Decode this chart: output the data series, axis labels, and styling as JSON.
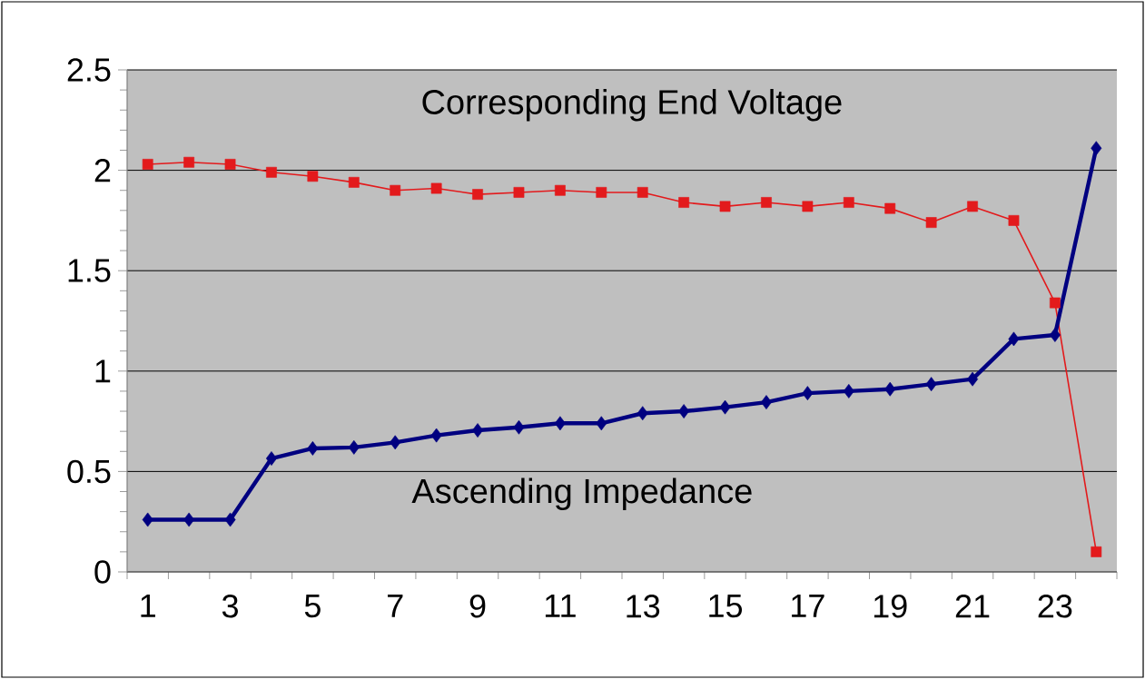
{
  "chart_data": {
    "type": "line",
    "categories": [
      "1",
      null,
      "3",
      null,
      "5",
      null,
      "7",
      null,
      "9",
      null,
      "11",
      null,
      "13",
      null,
      "15",
      null,
      "17",
      null,
      "19",
      null,
      "21",
      null,
      "23",
      null
    ],
    "series": [
      {
        "name": "Corresponding End Voltage",
        "color": "#e31a1c",
        "marker": "square",
        "values": [
          2.03,
          2.04,
          2.03,
          1.99,
          1.97,
          1.94,
          1.9,
          1.91,
          1.88,
          1.89,
          1.9,
          1.89,
          1.89,
          1.84,
          1.82,
          1.84,
          1.82,
          1.84,
          1.81,
          1.74,
          1.82,
          1.75,
          1.34,
          0.1
        ]
      },
      {
        "name": "Ascending Impedance",
        "color": "#000080",
        "marker": "diamond",
        "values": [
          0.26,
          0.26,
          0.26,
          0.565,
          0.615,
          0.62,
          0.645,
          0.68,
          0.705,
          0.72,
          0.74,
          0.74,
          0.79,
          0.8,
          0.82,
          0.845,
          0.89,
          0.9,
          0.91,
          0.935,
          0.96,
          1.16,
          1.18,
          2.11
        ]
      }
    ],
    "ylim": [
      0,
      2.5
    ],
    "yticks": [
      0,
      0.5,
      1,
      1.5,
      2,
      2.5
    ],
    "grid": "y"
  }
}
